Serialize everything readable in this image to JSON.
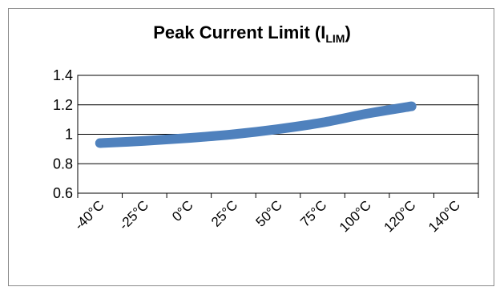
{
  "chart_data": {
    "type": "line",
    "title": "Peak Current Limit (I",
    "title_subscript": "LIM",
    "title_suffix": ")",
    "xlabel": "",
    "ylabel": "",
    "categories": [
      "-40°C",
      "-25°C",
      "0°C",
      "25°C",
      "50°C",
      "75°C",
      "100°C",
      "120°C",
      "140°C"
    ],
    "y_ticks": [
      "0.6",
      "0.8",
      "1",
      "1.2",
      "1.4"
    ],
    "ylim": [
      0.6,
      1.4
    ],
    "series": [
      {
        "values": [
          0.94,
          0.955,
          0.975,
          1.0,
          1.035,
          1.08,
          1.14,
          1.19,
          null
        ],
        "color": "#4f81bd"
      }
    ],
    "grid": "horizontal",
    "legend": "none"
  }
}
